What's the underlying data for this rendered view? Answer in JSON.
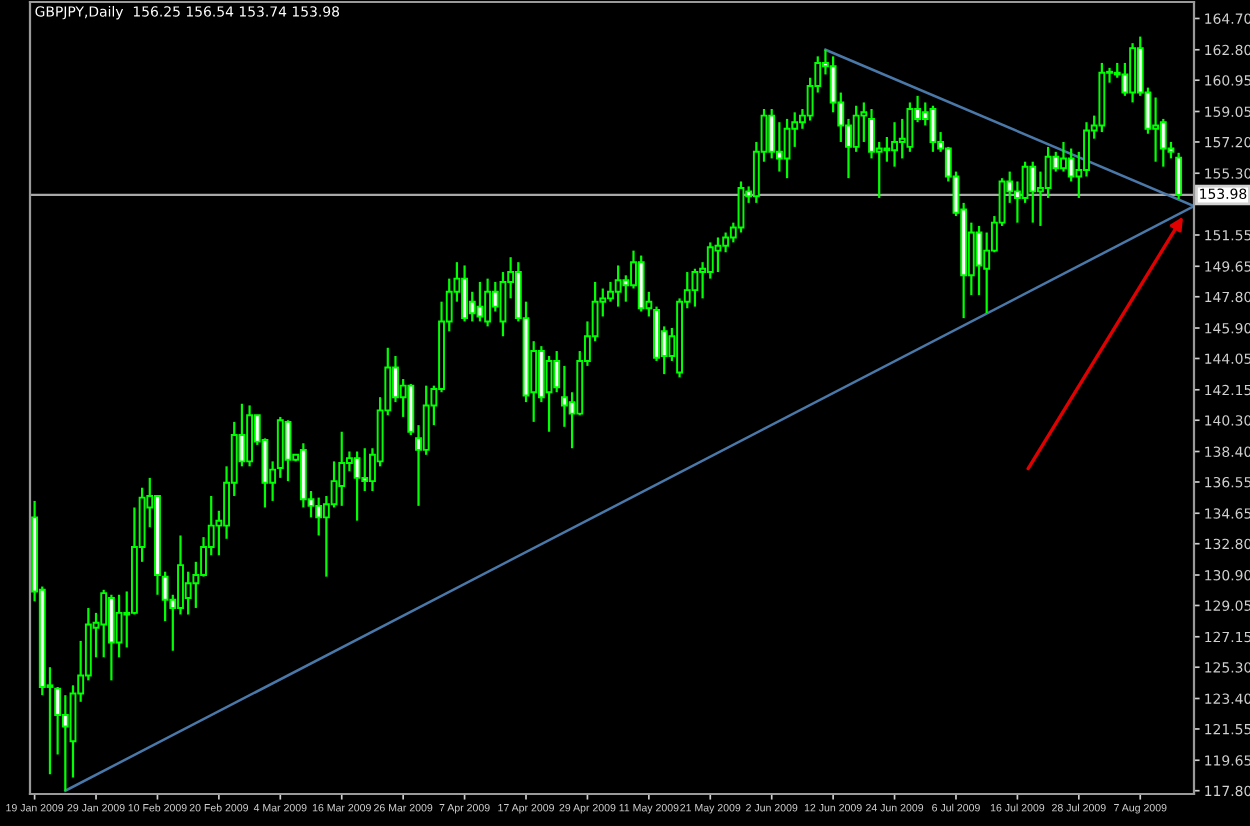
{
  "chart_data": {
    "type": "candlestick",
    "title": "GBPJPY,Daily  156.25 156.54 153.74 153.98",
    "color": "#00ff00",
    "categories": [
      "19 Jan 2009",
      null,
      null,
      null,
      null,
      null,
      null,
      null,
      "29 Jan 2009",
      null,
      null,
      null,
      null,
      null,
      null,
      null,
      "10 Feb 2009",
      null,
      null,
      null,
      null,
      null,
      null,
      null,
      "20 Feb 2009",
      null,
      null,
      null,
      null,
      null,
      null,
      null,
      "4 Mar 2009",
      null,
      null,
      null,
      null,
      null,
      null,
      null,
      "16 Mar 2009",
      null,
      null,
      null,
      null,
      null,
      null,
      null,
      "26 Mar 2009",
      null,
      null,
      null,
      null,
      null,
      null,
      null,
      "7 Apr 2009",
      null,
      null,
      null,
      null,
      null,
      null,
      null,
      "17 Apr 2009",
      null,
      null,
      null,
      null,
      null,
      null,
      null,
      "29 Apr 2009",
      null,
      null,
      null,
      null,
      null,
      null,
      null,
      "11 May 2009",
      null,
      null,
      null,
      null,
      null,
      null,
      null,
      "21 May 2009",
      null,
      null,
      null,
      null,
      null,
      null,
      null,
      "2 Jun 2009",
      null,
      null,
      null,
      null,
      null,
      null,
      null,
      "12 Jun 2009",
      null,
      null,
      null,
      null,
      null,
      null,
      null,
      "24 Jun 2009",
      null,
      null,
      null,
      null,
      null,
      null,
      null,
      "6 Jul 2009",
      null,
      null,
      null,
      null,
      null,
      null,
      null,
      "16 Jul 2009",
      null,
      null,
      null,
      null,
      null,
      null,
      null,
      "28 Jul 2009",
      null,
      null,
      null,
      null,
      null,
      null,
      null,
      "7 Aug 2009",
      null,
      null,
      null,
      null,
      null,
      null,
      null
    ],
    "ohlc": [
      [
        134.4,
        135.4,
        129.3,
        129.9
      ],
      [
        130.0,
        130.2,
        123.6,
        124.1
      ],
      [
        124.1,
        125.3,
        118.8,
        124.2
      ],
      [
        124.0,
        124.1,
        120.0,
        122.4
      ],
      [
        122.4,
        123.6,
        117.8,
        121.7
      ],
      [
        120.8,
        124.2,
        118.6,
        123.7
      ],
      [
        123.7,
        126.9,
        123.2,
        124.8
      ],
      [
        124.8,
        128.9,
        124.5,
        127.9
      ],
      [
        127.7,
        128.6,
        125.9,
        128.0
      ],
      [
        127.9,
        130.0,
        125.9,
        129.8
      ],
      [
        129.5,
        129.7,
        124.5,
        126.8
      ],
      [
        126.8,
        129.7,
        125.9,
        128.6
      ],
      [
        128.6,
        129.9,
        126.5,
        128.5
      ],
      [
        128.6,
        135.0,
        128.5,
        132.6
      ],
      [
        132.6,
        136.2,
        131.7,
        135.6
      ],
      [
        135.0,
        136.8,
        133.8,
        135.7
      ],
      [
        135.7,
        135.7,
        129.7,
        130.9
      ],
      [
        130.8,
        131.1,
        128.1,
        129.4
      ],
      [
        129.4,
        129.7,
        126.3,
        128.9
      ],
      [
        128.9,
        133.3,
        128.5,
        131.5
      ],
      [
        129.5,
        131.1,
        128.5,
        130.4
      ],
      [
        130.4,
        131.7,
        128.9,
        130.9
      ],
      [
        130.9,
        133.2,
        130.8,
        132.6
      ],
      [
        132.6,
        135.7,
        132.1,
        133.9
      ],
      [
        133.9,
        134.8,
        132.1,
        134.2
      ],
      [
        133.9,
        137.5,
        133.1,
        136.5
      ],
      [
        136.5,
        140.2,
        135.7,
        139.4
      ],
      [
        139.4,
        141.3,
        137.5,
        137.8
      ],
      [
        137.8,
        141.2,
        137.5,
        140.6
      ],
      [
        140.6,
        140.6,
        138.8,
        139.0
      ],
      [
        139.1,
        139.2,
        135.0,
        136.5
      ],
      [
        136.5,
        137.8,
        135.4,
        137.3
      ],
      [
        137.4,
        140.5,
        136.8,
        140.3
      ],
      [
        140.2,
        140.3,
        136.6,
        137.9
      ],
      [
        137.9,
        138.2,
        137.8,
        138.2
      ],
      [
        138.5,
        138.9,
        135.0,
        135.5
      ],
      [
        135.5,
        136.0,
        134.4,
        135.1
      ],
      [
        135.1,
        135.6,
        133.3,
        134.4
      ],
      [
        134.4,
        135.7,
        130.8,
        135.2
      ],
      [
        135.2,
        137.8,
        135.0,
        136.6
      ],
      [
        136.3,
        139.6,
        135.1,
        137.7
      ],
      [
        137.7,
        138.4,
        137.2,
        138.0
      ],
      [
        138.0,
        138.4,
        134.2,
        136.8
      ],
      [
        136.8,
        138.6,
        136.0,
        136.6
      ],
      [
        136.6,
        138.6,
        136.0,
        138.2
      ],
      [
        137.8,
        141.7,
        137.5,
        140.9
      ],
      [
        140.9,
        144.7,
        140.6,
        143.5
      ],
      [
        143.5,
        144.2,
        141.4,
        141.7
      ],
      [
        141.7,
        142.8,
        140.5,
        142.4
      ],
      [
        142.4,
        142.5,
        139.4,
        139.6
      ],
      [
        139.2,
        140.0,
        135.1,
        138.5
      ],
      [
        138.5,
        142.4,
        138.2,
        141.2
      ],
      [
        141.2,
        142.4,
        140.0,
        142.2
      ],
      [
        142.2,
        147.5,
        142.0,
        146.3
      ],
      [
        146.3,
        148.9,
        145.7,
        148.1
      ],
      [
        148.1,
        149.9,
        147.5,
        148.9
      ],
      [
        148.9,
        149.7,
        146.3,
        146.5
      ],
      [
        147.5,
        148.1,
        146.3,
        146.8
      ],
      [
        147.2,
        148.7,
        146.3,
        146.6
      ],
      [
        146.3,
        148.9,
        146.0,
        148.1
      ],
      [
        148.1,
        148.7,
        146.9,
        147.2
      ],
      [
        146.3,
        149.3,
        145.4,
        148.7
      ],
      [
        148.7,
        150.2,
        147.7,
        149.3
      ],
      [
        149.3,
        149.9,
        146.3,
        146.5
      ],
      [
        146.5,
        147.5,
        141.4,
        141.8
      ],
      [
        142.0,
        145.1,
        140.2,
        144.5
      ],
      [
        144.5,
        144.8,
        141.4,
        141.7
      ],
      [
        142.0,
        144.2,
        139.6,
        143.9
      ],
      [
        143.9,
        144.5,
        142.0,
        142.3
      ],
      [
        141.7,
        143.6,
        139.9,
        141.2
      ],
      [
        141.4,
        142.0,
        138.6,
        140.7
      ],
      [
        140.7,
        144.5,
        140.6,
        143.9
      ],
      [
        143.9,
        146.3,
        143.6,
        145.4
      ],
      [
        145.4,
        148.7,
        145.1,
        147.5
      ],
      [
        147.5,
        148.3,
        146.6,
        147.7
      ],
      [
        147.7,
        148.7,
        147.5,
        148.1
      ],
      [
        148.1,
        149.7,
        147.2,
        148.8
      ],
      [
        148.8,
        149.1,
        147.5,
        148.5
      ],
      [
        148.5,
        150.6,
        148.3,
        149.9
      ],
      [
        149.9,
        150.3,
        146.9,
        147.1
      ],
      [
        147.1,
        148.1,
        146.6,
        147.5
      ],
      [
        147.0,
        147.2,
        143.9,
        144.1
      ],
      [
        145.7,
        146.0,
        143.1,
        144.2
      ],
      [
        144.2,
        145.9,
        143.9,
        145.4
      ],
      [
        143.2,
        147.7,
        142.9,
        147.5
      ],
      [
        147.5,
        149.3,
        147.1,
        148.2
      ],
      [
        148.2,
        149.5,
        147.2,
        149.3
      ],
      [
        149.3,
        149.9,
        147.7,
        149.5
      ],
      [
        149.3,
        151.1,
        148.9,
        150.8
      ],
      [
        150.6,
        151.4,
        149.3,
        150.9
      ],
      [
        150.9,
        151.7,
        150.5,
        151.4
      ],
      [
        151.4,
        152.3,
        151.1,
        152.0
      ],
      [
        152.0,
        154.8,
        151.7,
        154.4
      ],
      [
        154.2,
        154.5,
        153.5,
        153.9
      ],
      [
        153.9,
        157.2,
        153.5,
        156.6
      ],
      [
        156.6,
        159.2,
        156.0,
        158.8
      ],
      [
        158.8,
        159.2,
        156.2,
        156.6
      ],
      [
        156.6,
        158.4,
        155.4,
        156.2
      ],
      [
        156.2,
        158.6,
        155.0,
        158.0
      ],
      [
        158.0,
        159.0,
        156.9,
        158.4
      ],
      [
        158.4,
        159.2,
        158.0,
        158.8
      ],
      [
        158.8,
        161.1,
        158.5,
        160.6
      ],
      [
        160.6,
        162.4,
        160.2,
        162.0
      ],
      [
        162.0,
        162.8,
        161.3,
        161.8
      ],
      [
        161.8,
        162.4,
        159.0,
        159.6
      ],
      [
        159.6,
        160.2,
        157.2,
        158.2
      ],
      [
        158.2,
        158.6,
        155.0,
        156.9
      ],
      [
        156.9,
        159.4,
        156.6,
        158.8
      ],
      [
        158.8,
        159.6,
        157.2,
        159.0
      ],
      [
        158.6,
        159.2,
        156.2,
        156.6
      ],
      [
        156.6,
        157.2,
        153.8,
        156.8
      ],
      [
        156.8,
        157.5,
        156.0,
        156.7
      ],
      [
        156.7,
        158.4,
        155.7,
        157.2
      ],
      [
        157.2,
        158.6,
        156.2,
        157.4
      ],
      [
        156.9,
        159.6,
        156.6,
        159.2
      ],
      [
        159.2,
        160.0,
        158.4,
        158.6
      ],
      [
        159.0,
        159.6,
        158.2,
        158.6
      ],
      [
        159.2,
        159.4,
        156.6,
        157.2
      ],
      [
        157.2,
        157.8,
        156.6,
        156.8
      ],
      [
        156.8,
        156.9,
        154.8,
        155.1
      ],
      [
        155.1,
        155.4,
        152.7,
        152.9
      ],
      [
        153.1,
        153.5,
        146.5,
        149.1
      ],
      [
        149.1,
        152.3,
        147.9,
        151.7
      ],
      [
        151.7,
        152.1,
        147.9,
        149.7
      ],
      [
        149.5,
        151.7,
        146.8,
        150.6
      ],
      [
        150.6,
        152.7,
        150.5,
        152.3
      ],
      [
        152.3,
        155.0,
        152.1,
        154.8
      ],
      [
        154.8,
        155.4,
        153.5,
        154.2
      ],
      [
        154.2,
        154.8,
        152.3,
        153.8
      ],
      [
        153.8,
        156.0,
        153.5,
        155.7
      ],
      [
        155.7,
        156.0,
        152.3,
        154.2
      ],
      [
        154.2,
        155.4,
        152.1,
        154.4
      ],
      [
        154.4,
        156.9,
        153.8,
        156.3
      ],
      [
        156.3,
        156.6,
        155.4,
        155.6
      ],
      [
        155.6,
        157.2,
        155.4,
        156.2
      ],
      [
        156.2,
        156.8,
        154.8,
        155.1
      ],
      [
        155.1,
        156.6,
        153.8,
        155.5
      ],
      [
        155.5,
        158.4,
        155.1,
        157.9
      ],
      [
        157.9,
        158.8,
        157.4,
        158.2
      ],
      [
        158.2,
        162.0,
        157.8,
        161.4
      ],
      [
        161.4,
        161.7,
        160.8,
        161.4
      ],
      [
        161.4,
        162.0,
        161.1,
        161.3
      ],
      [
        161.3,
        162.0,
        160.0,
        160.2
      ],
      [
        160.2,
        163.2,
        159.6,
        162.9
      ],
      [
        162.9,
        163.6,
        160.0,
        160.2
      ],
      [
        160.2,
        160.5,
        157.7,
        158.0
      ],
      [
        158.0,
        159.9,
        156.0,
        158.2
      ],
      [
        158.4,
        158.6,
        155.7,
        156.8
      ],
      [
        156.8,
        157.2,
        156.2,
        156.6
      ],
      [
        156.25,
        156.54,
        153.74,
        153.98
      ],
      null,
      null
    ],
    "series": [
      {
        "type": "line",
        "color": "#4a78a8",
        "values": [
          null,
          null,
          null,
          null,
          117.8,
          null,
          null,
          null,
          null,
          null,
          null,
          null,
          null,
          null,
          null,
          null,
          null,
          null,
          null,
          null,
          null,
          null,
          null,
          null,
          null,
          null,
          null,
          null,
          null,
          null,
          null,
          null,
          null,
          null,
          null,
          null,
          null,
          null,
          null,
          null,
          null,
          null,
          null,
          null,
          null,
          null,
          null,
          null,
          null,
          null,
          null,
          null,
          null,
          null,
          null,
          null,
          null,
          null,
          null,
          null,
          null,
          null,
          null,
          null,
          null,
          null,
          null,
          null,
          null,
          null,
          null,
          null,
          null,
          null,
          null,
          null,
          null,
          null,
          null,
          null,
          null,
          null,
          null,
          null,
          null,
          null,
          null,
          null,
          null,
          null,
          null,
          null,
          null,
          null,
          null,
          null,
          null,
          null,
          null,
          null,
          null,
          null,
          null,
          null,
          null,
          null,
          null,
          null,
          null,
          null,
          null,
          null,
          null,
          null,
          null,
          null,
          null,
          null,
          null,
          null,
          null,
          null,
          null,
          null,
          null,
          null,
          null,
          null,
          null,
          null,
          null,
          null,
          null,
          null,
          null,
          null,
          null,
          null,
          null,
          null,
          null,
          null,
          null,
          null,
          null,
          null,
          null,
          null,
          null,
          null,
          null,
          153.3
        ]
      },
      {
        "type": "line",
        "color": "#4a78a8",
        "values": [
          null,
          null,
          null,
          null,
          null,
          null,
          null,
          null,
          null,
          null,
          null,
          null,
          null,
          null,
          null,
          null,
          null,
          null,
          null,
          null,
          null,
          null,
          null,
          null,
          null,
          null,
          null,
          null,
          null,
          null,
          null,
          null,
          null,
          null,
          null,
          null,
          null,
          null,
          null,
          null,
          null,
          null,
          null,
          null,
          null,
          null,
          null,
          null,
          null,
          null,
          null,
          null,
          null,
          null,
          null,
          null,
          null,
          null,
          null,
          null,
          null,
          null,
          null,
          null,
          null,
          null,
          null,
          null,
          null,
          null,
          null,
          null,
          null,
          null,
          null,
          null,
          null,
          null,
          null,
          null,
          null,
          null,
          null,
          null,
          null,
          null,
          null,
          null,
          null,
          null,
          null,
          null,
          null,
          null,
          null,
          null,
          null,
          null,
          null,
          null,
          null,
          null,
          null,
          162.8,
          null,
          null,
          null,
          null,
          null,
          null,
          null,
          null,
          null,
          null,
          null,
          null,
          null,
          null,
          null,
          null,
          null,
          null,
          null,
          null,
          null,
          null,
          null,
          null,
          null,
          null,
          null,
          null,
          null,
          null,
          null,
          null,
          null,
          null,
          null,
          null,
          null,
          null,
          null,
          null,
          null,
          null,
          null,
          null,
          null,
          null,
          null,
          153.3
        ]
      }
    ],
    "ylim": [
      117.6,
      165.7
    ],
    "yticks": [
      {
        "value": 164.7,
        "label": "164.70"
      },
      {
        "value": 162.8,
        "label": "162.80"
      },
      160.95,
      159.05,
      {
        "value": 157.2,
        "label": "157.20"
      },
      {
        "value": 155.3,
        "label": "155.30"
      },
      151.55,
      149.65,
      {
        "value": 147.8,
        "label": "147.80"
      },
      {
        "value": 145.9,
        "label": "145.90"
      },
      144.05,
      142.15,
      {
        "value": 140.3,
        "label": "140.30"
      },
      {
        "value": 138.4,
        "label": "138.40"
      },
      136.55,
      134.65,
      {
        "value": 132.8,
        "label": "132.80"
      },
      {
        "value": 130.9,
        "label": "130.90"
      },
      129.05,
      127.15,
      {
        "value": 125.3,
        "label": "125.30"
      },
      {
        "value": 123.4,
        "label": "123.40"
      },
      121.55,
      119.65,
      {
        "value": 117.8,
        "label": "117.80"
      }
    ],
    "ref_lines": [
      {
        "axis": "y",
        "value": 153.98,
        "label": "153.98",
        "color": "#a8a8a8"
      }
    ]
  }
}
